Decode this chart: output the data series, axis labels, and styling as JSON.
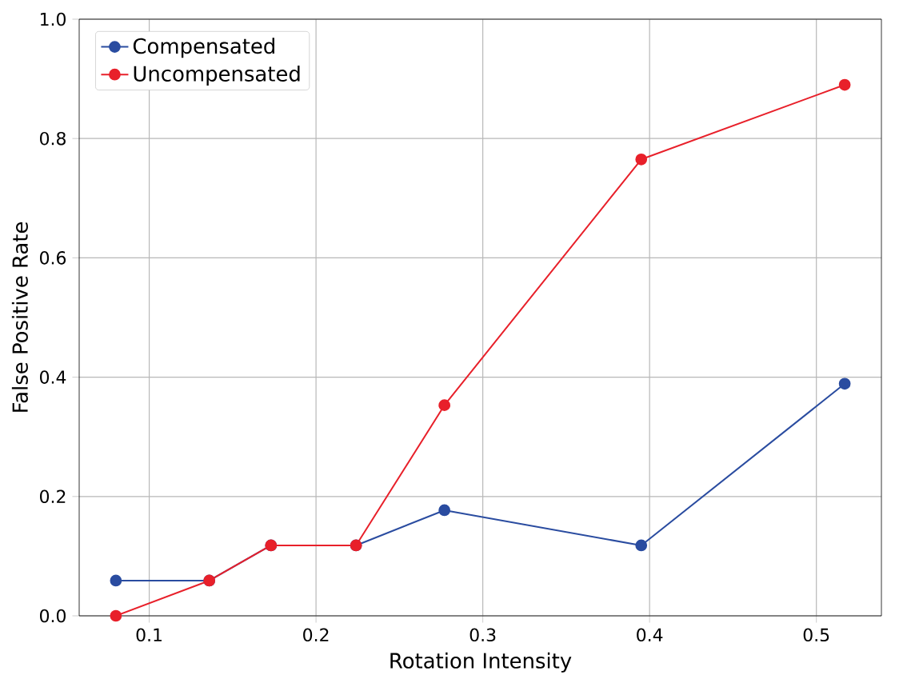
{
  "chart_data": {
    "type": "line",
    "xlabel": "Rotation Intensity",
    "ylabel": "False Positive Rate",
    "x": [
      0.08,
      0.136,
      0.173,
      0.224,
      0.277,
      0.395,
      0.517
    ],
    "series": [
      {
        "name": "Compensated",
        "color": "#2a4ca0",
        "values": [
          0.059,
          0.059,
          0.118,
          0.118,
          0.177,
          0.118,
          0.389
        ]
      },
      {
        "name": "Uncompensated",
        "color": "#e8202a",
        "values": [
          0.0,
          0.059,
          0.118,
          0.118,
          0.353,
          0.765,
          0.89
        ]
      }
    ],
    "xlim": [
      0.058,
      0.539
    ],
    "ylim": [
      0,
      1
    ],
    "xticks": [
      0.1,
      0.2,
      0.3,
      0.4,
      0.5
    ],
    "yticks": [
      {
        "value": 0,
        "label": "0.0"
      },
      0.2,
      0.4,
      0.6,
      0.8,
      {
        "value": 1,
        "label": "1.0"
      }
    ],
    "grid": true,
    "legend": "top left",
    "marker": "circle",
    "line_style": "solid"
  }
}
